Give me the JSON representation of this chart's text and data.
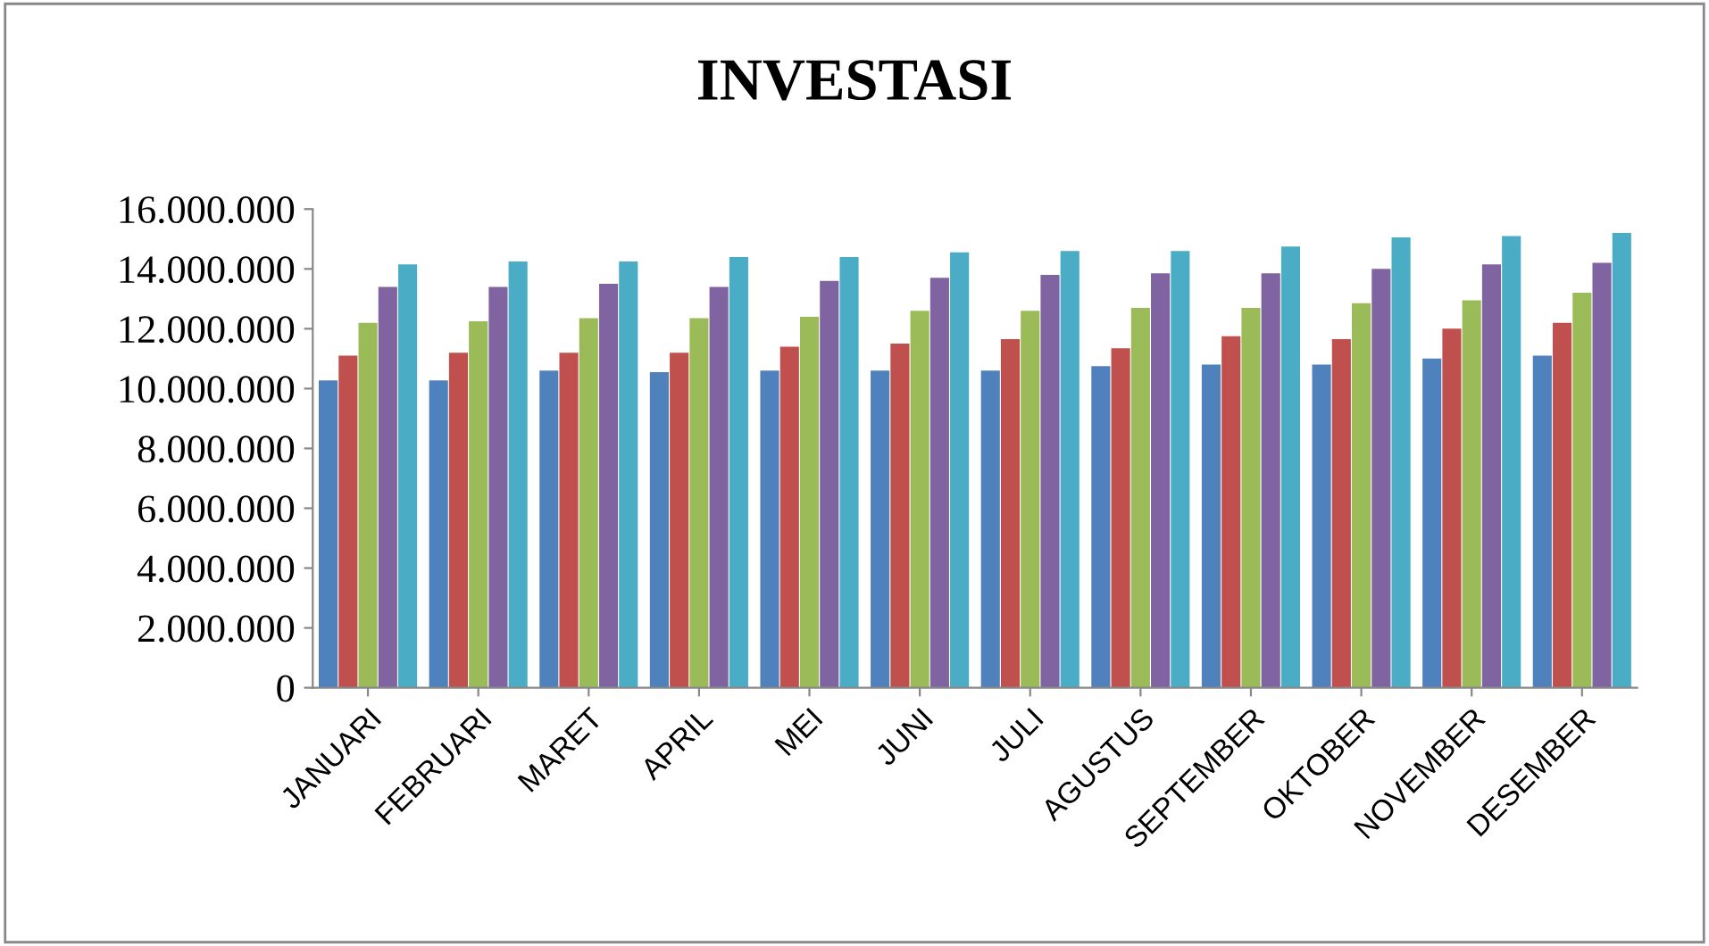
{
  "chart_data": {
    "type": "bar",
    "title": "INVESTASI",
    "categories": [
      "JANUARI",
      "FEBRUARI",
      "MARET",
      "APRIL",
      "MEI",
      "JUNI",
      "JULI",
      "AGUSTUS",
      "SEPTEMBER",
      "OKTOBER",
      "NOVEMBER",
      "DESEMBER"
    ],
    "series": [
      {
        "color": "#4f81bd",
        "values": [
          10270000,
          10270000,
          10600000,
          10550000,
          10600000,
          10600000,
          10600000,
          10750000,
          10800000,
          10800000,
          11000000,
          11100000
        ]
      },
      {
        "color": "#c0504d",
        "values": [
          11100000,
          11200000,
          11200000,
          11200000,
          11400000,
          11500000,
          11650000,
          11350000,
          11750000,
          11650000,
          12000000,
          12200000
        ]
      },
      {
        "color": "#9bbb59",
        "values": [
          12200000,
          12250000,
          12350000,
          12350000,
          12400000,
          12600000,
          12600000,
          12700000,
          12700000,
          12850000,
          12950000,
          13200000
        ]
      },
      {
        "color": "#8064a2",
        "values": [
          13400000,
          13400000,
          13500000,
          13400000,
          13600000,
          13700000,
          13800000,
          13850000,
          13850000,
          14000000,
          14150000,
          14200000
        ]
      },
      {
        "color": "#4bacc6",
        "values": [
          14150000,
          14250000,
          14250000,
          14400000,
          14400000,
          14550000,
          14600000,
          14600000,
          14750000,
          15050000,
          15100000,
          15200000
        ]
      }
    ],
    "ylim": [
      0,
      16000000
    ],
    "yticks": [
      {
        "value": 0,
        "label": "0"
      },
      {
        "value": 2000000,
        "label": "2.000.000"
      },
      {
        "value": 4000000,
        "label": "4.000.000"
      },
      {
        "value": 6000000,
        "label": "6.000.000"
      },
      {
        "value": 8000000,
        "label": "8.000.000"
      },
      {
        "value": 10000000,
        "label": "10.000.000"
      },
      {
        "value": 12000000,
        "label": "12.000.000"
      },
      {
        "value": 14000000,
        "label": "14.000.000"
      },
      {
        "value": 16000000,
        "label": "16.000.000"
      }
    ],
    "grid": false,
    "legend": false
  }
}
